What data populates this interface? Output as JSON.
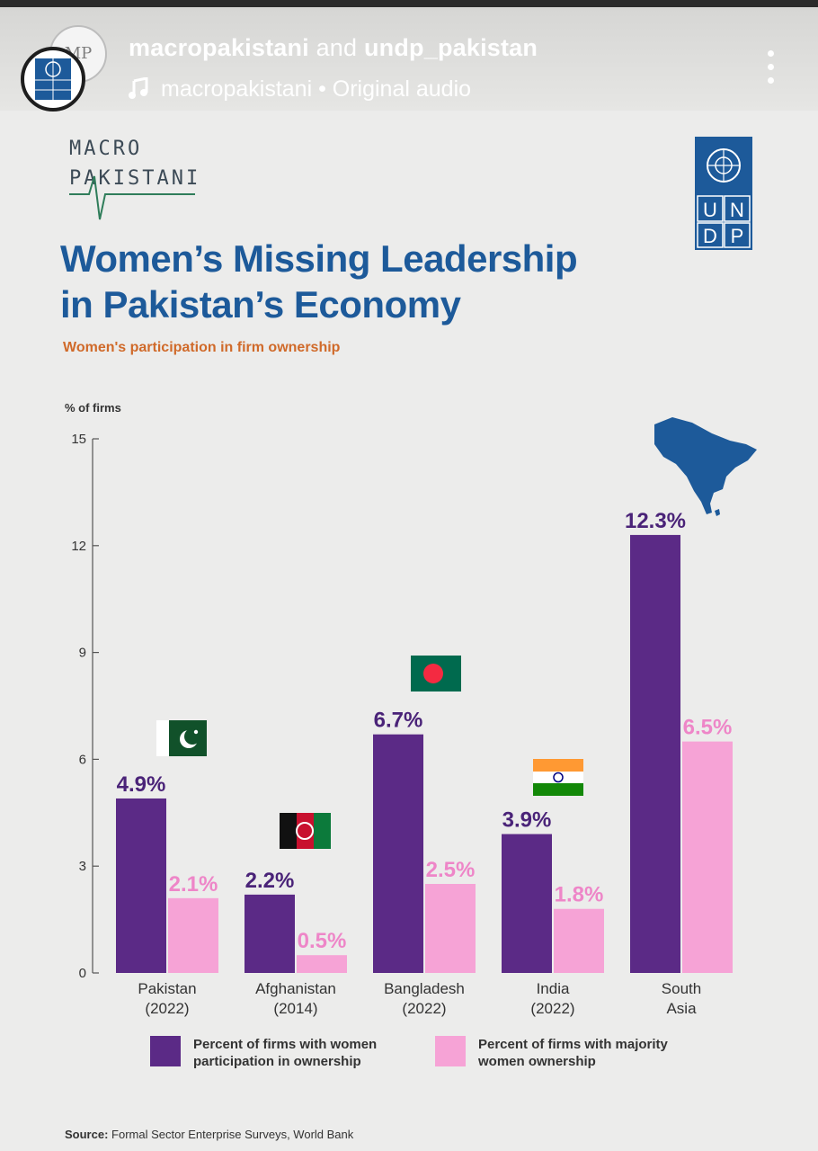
{
  "post": {
    "handle_primary": "macropakistani",
    "handle_connector": " and ",
    "handle_secondary": "undp_pakistan",
    "audio_label": "macropakistani • Original audio",
    "avatar_back_text": "MP",
    "more_icon": "more-vertical-icon",
    "audio_icon": "music-note-icon"
  },
  "logos": {
    "macro_line1": "MACRO",
    "macro_line2": "PAKISTANI",
    "undp_letters": [
      "U",
      "N",
      "D",
      "P"
    ],
    "undp_color": "#1d5a9a"
  },
  "infographic": {
    "title_line1": "Women’s Missing Leadership",
    "title_line2": "in Pakistan’s Economy",
    "subtitle": "Women's participation in firm ownership",
    "source_label": "Source:",
    "source_text": " Formal Sector Enterprise Surveys, World Bank"
  },
  "chart_data": {
    "type": "bar",
    "ylabel": "% of firms",
    "ylim": [
      0,
      15
    ],
    "yticks": [
      0,
      3,
      6,
      9,
      12,
      15
    ],
    "categories": [
      [
        "Pakistan",
        "(2022)"
      ],
      [
        "Afghanistan",
        "(2014)"
      ],
      [
        "Bangladesh",
        "(2022)"
      ],
      [
        "India",
        "(2022)"
      ],
      [
        "South",
        "Asia"
      ]
    ],
    "series": [
      {
        "name": "Percent of firms with women participation in ownership",
        "legend_lines": [
          "Percent of firms with women",
          "participation in ownership"
        ],
        "values": [
          4.9,
          2.2,
          6.7,
          3.9,
          12.3
        ],
        "labels": [
          "4.9%",
          "2.2%",
          "6.7%",
          "3.9%",
          "12.3%"
        ],
        "color": "#5b2a86",
        "label_color": "#4a2378"
      },
      {
        "name": "Percent of firms with majority women ownership",
        "legend_lines": [
          "Percent of firms with majority",
          "women ownership"
        ],
        "values": [
          2.1,
          0.5,
          2.5,
          1.8,
          6.5
        ],
        "labels": [
          "2.1%",
          "0.5%",
          "2.5%",
          "1.8%",
          "6.5%"
        ],
        "color": "#f6a3d6",
        "label_color": "#ee86c8"
      }
    ],
    "icons": [
      "pakistan-flag-icon",
      "afghanistan-flag-icon",
      "bangladesh-flag-icon",
      "india-flag-icon",
      "south-asia-map-icon"
    ],
    "grid": false,
    "legend": "bottom"
  }
}
